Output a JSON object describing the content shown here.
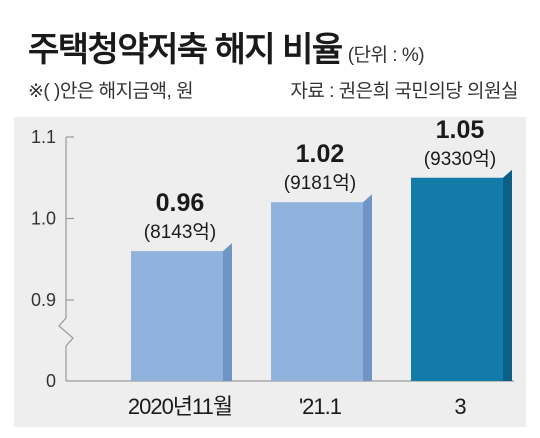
{
  "header": {
    "title": "주택청약저축 해지 비율",
    "unit": "(단위 : %)",
    "note": "※(  )안은 해지금액, 원",
    "source": "자료 : 권은희 국민의당 의원실"
  },
  "chart_data": {
    "type": "bar",
    "categories": [
      "2020년11월",
      "'21.1",
      "3"
    ],
    "values": [
      0.96,
      1.02,
      1.05
    ],
    "value_labels": [
      "0.96",
      "1.02",
      "1.05"
    ],
    "amount_labels": [
      "(8143억)",
      "(9181억)",
      "(9330억)"
    ],
    "y_ticks": [
      {
        "value": 0.9,
        "label": "0.9"
      },
      {
        "value": 1.0,
        "label": "1.0"
      },
      {
        "value": 1.1,
        "label": "1.1"
      }
    ],
    "y_zero_label": "0",
    "ylim": [
      0.85,
      1.1
    ],
    "axis_break": true,
    "grid": false,
    "colors": {
      "bar_light": "#8fb3dc",
      "bar_light_side": "#6f95c4",
      "bar_dark": "#127ba8",
      "bar_dark_side": "#0c5f85",
      "panel_bg": "#eeeeee"
    },
    "highlight_index": 2
  }
}
